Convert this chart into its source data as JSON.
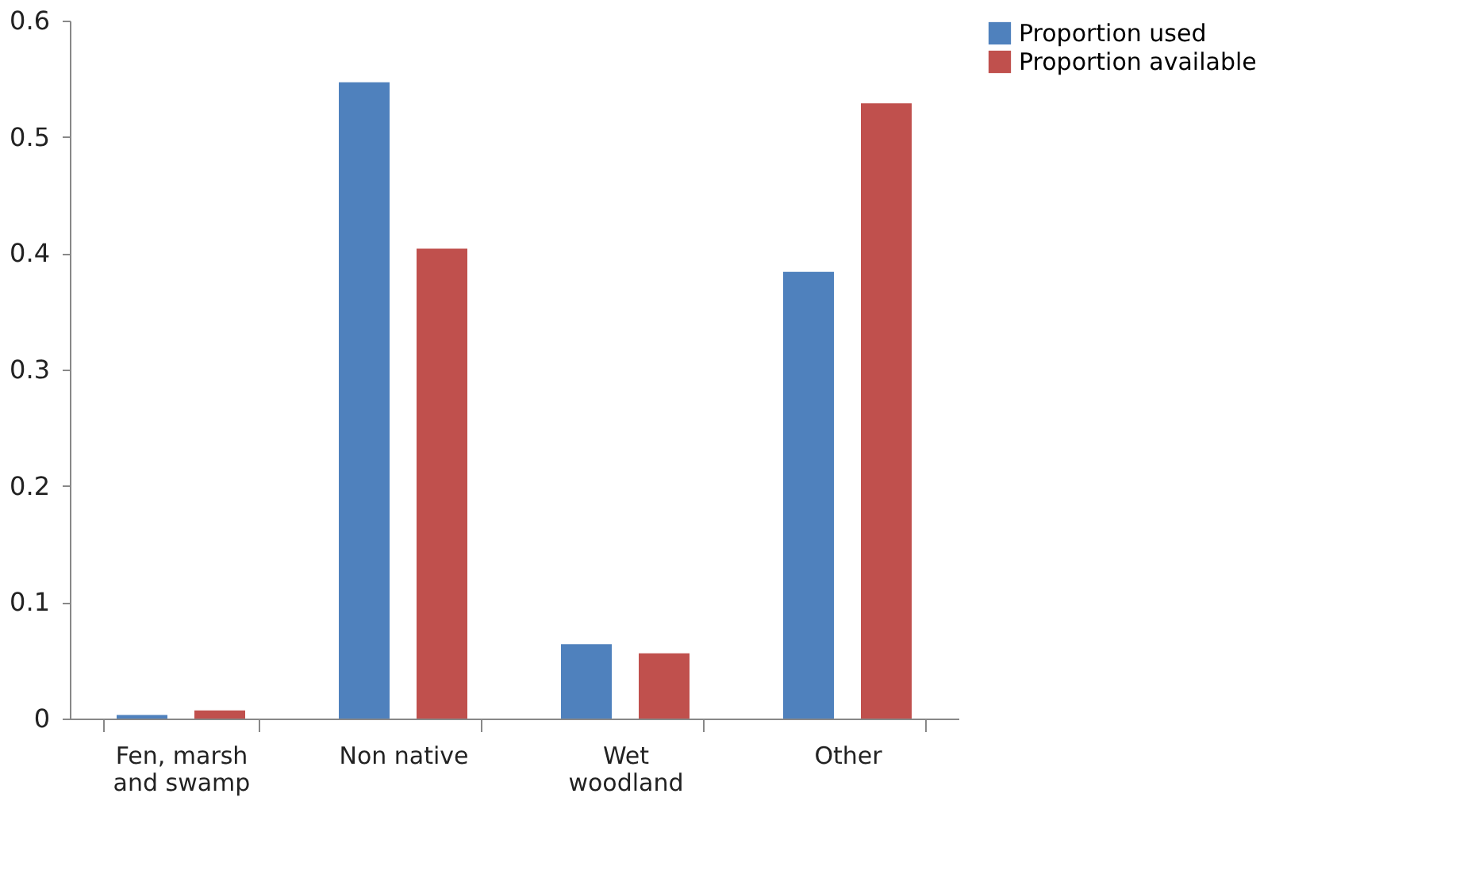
{
  "chart_data": {
    "type": "bar",
    "categories": [
      "Fen, marsh and swamp",
      "Non native",
      "Wet woodland",
      "Other"
    ],
    "series": [
      {
        "name": "Proportion used",
        "color": "#4f81bd",
        "values": [
          0.003,
          0.547,
          0.064,
          0.384
        ]
      },
      {
        "name": "Proportion available",
        "color": "#c0504d",
        "values": [
          0.007,
          0.404,
          0.056,
          0.529
        ]
      }
    ],
    "ylim": [
      0,
      0.6
    ],
    "yticks": [
      0,
      0.1,
      0.2,
      0.3,
      0.4,
      0.5,
      0.6
    ],
    "grid": false,
    "legend": "right"
  }
}
